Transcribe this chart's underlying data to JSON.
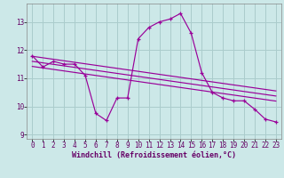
{
  "xlabel": "Windchill (Refroidissement éolien,°C)",
  "bg_color": "#cce8e8",
  "grid_color": "#aacccc",
  "line_color": "#990099",
  "hours": [
    0,
    1,
    2,
    3,
    4,
    5,
    6,
    7,
    8,
    9,
    10,
    11,
    12,
    13,
    14,
    15,
    16,
    17,
    18,
    19,
    20,
    21,
    22,
    23
  ],
  "values": [
    11.8,
    11.4,
    11.6,
    11.5,
    11.5,
    11.1,
    9.75,
    9.5,
    10.3,
    10.3,
    12.4,
    12.8,
    13.0,
    13.1,
    13.3,
    12.6,
    11.2,
    10.5,
    10.3,
    10.2,
    10.2,
    9.9,
    9.55,
    9.45
  ],
  "reg1_start_y": 11.78,
  "reg1_end_y": 10.55,
  "reg2_start_y": 11.6,
  "reg2_end_y": 10.37,
  "reg3_start_y": 11.42,
  "reg3_end_y": 10.19,
  "ylim": [
    8.85,
    13.65
  ],
  "xlim_lo": -0.5,
  "xlim_hi": 23.5,
  "yticks": [
    9,
    10,
    11,
    12,
    13
  ],
  "xticks": [
    0,
    1,
    2,
    3,
    4,
    5,
    6,
    7,
    8,
    9,
    10,
    11,
    12,
    13,
    14,
    15,
    16,
    17,
    18,
    19,
    20,
    21,
    22,
    23
  ],
  "tick_fontsize": 5.5,
  "xlabel_fontsize": 6.0
}
